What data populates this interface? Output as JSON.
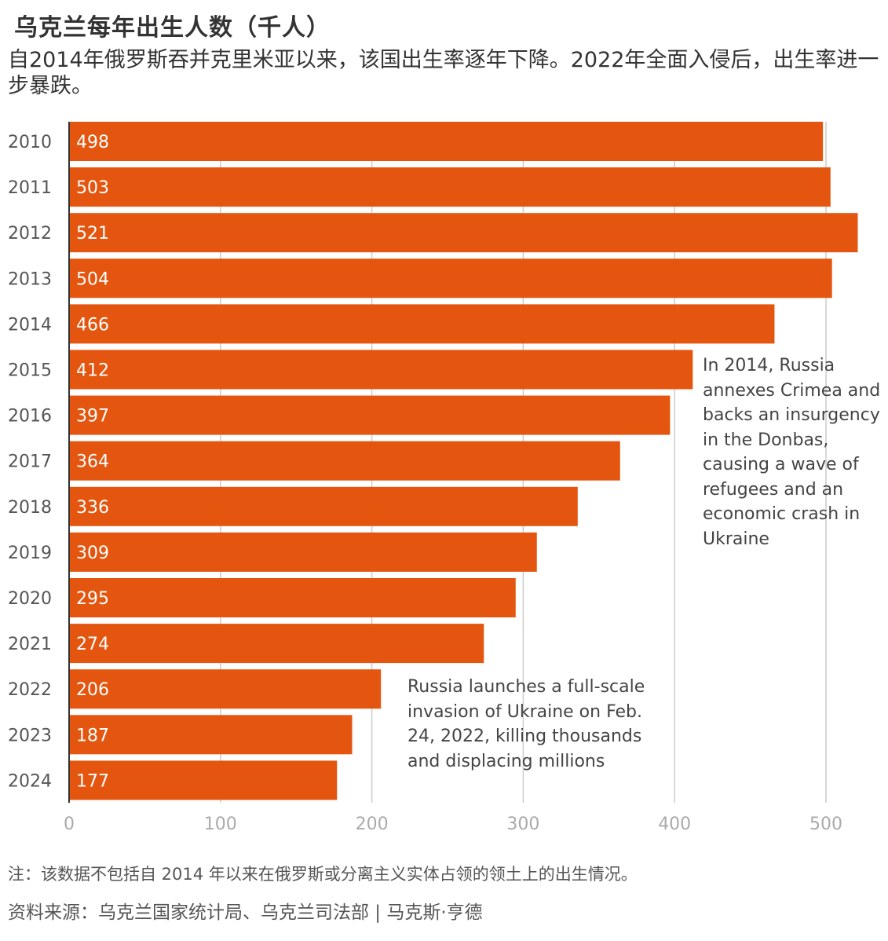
{
  "chart_data": {
    "type": "bar",
    "orientation": "horizontal",
    "title": "乌克兰每年出生人数（千人）",
    "subtitle": "自2014年俄罗斯吞并克里米亚以来，该国出生率逐年下降。2022年全面入侵后，出生率进一步暴跌。",
    "categories": [
      "2010",
      "2011",
      "2012",
      "2013",
      "2014",
      "2015",
      "2016",
      "2017",
      "2018",
      "2019",
      "2020",
      "2021",
      "2022",
      "2023",
      "2024"
    ],
    "values": [
      498,
      503,
      521,
      504,
      466,
      412,
      397,
      364,
      336,
      309,
      295,
      274,
      206,
      187,
      177
    ],
    "xlim": [
      0,
      500
    ],
    "xticks": [
      0,
      100,
      200,
      300,
      400,
      500
    ],
    "grid": "vertical",
    "legend": "none",
    "bar_color": "#e4560f",
    "annotations": [
      {
        "text": "In 2014, Russia annexes Crimea and backs an insurgency in the Donbas, causing a wave of refugees and an economic crash in Ukraine"
      },
      {
        "text": "Russia launches a full-scale invasion of Ukraine on Feb. 24, 2022, killing thousands and displacing millions"
      }
    ]
  },
  "footer": {
    "note": "注：该数据不包括自 2014 年以来在俄罗斯或分离主义实体占领的领土上的出生情况。",
    "source": "资料来源：乌克兰国家统计局、乌克兰司法部 | 马克斯·亨德"
  }
}
